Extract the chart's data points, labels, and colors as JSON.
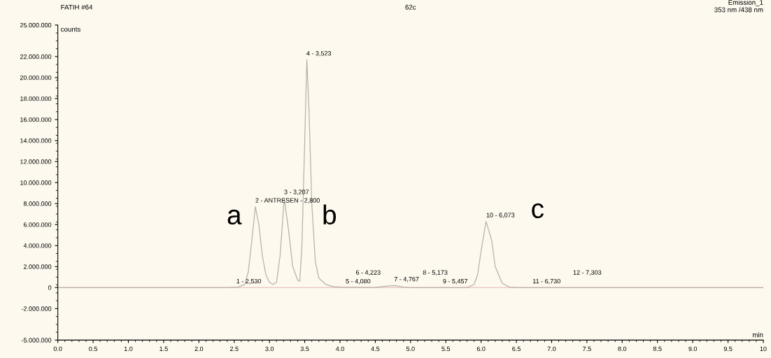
{
  "chart_data": {
    "type": "line",
    "title": "62c",
    "ylabel": "counts",
    "xlabel": "min",
    "xlim": [
      0,
      10
    ],
    "xticks": [
      {
        "value": 0,
        "label": "0.0"
      },
      {
        "value": 0.5,
        "label": "0.5"
      },
      {
        "value": 1,
        "label": "1.0"
      },
      {
        "value": 1.5,
        "label": "1.5"
      },
      {
        "value": 2,
        "label": "2.0"
      },
      {
        "value": 2.5,
        "label": "2.5"
      },
      {
        "value": 3,
        "label": "3.0"
      },
      {
        "value": 3.5,
        "label": "3.5"
      },
      {
        "value": 4,
        "label": "4.0"
      },
      {
        "value": 4.5,
        "label": "4.5"
      },
      {
        "value": 5,
        "label": "5.0"
      },
      {
        "value": 5.5,
        "label": "5.5"
      },
      {
        "value": 6,
        "label": "6.0"
      },
      {
        "value": 6.5,
        "label": "6.5"
      },
      {
        "value": 7,
        "label": "7.0"
      },
      {
        "value": 7.5,
        "label": "7.5"
      },
      {
        "value": 8,
        "label": "8.0"
      },
      {
        "value": 8.5,
        "label": "8.5"
      },
      {
        "value": 9,
        "label": "9.0"
      },
      {
        "value": 9.5,
        "label": "9.5"
      },
      {
        "value": 10,
        "label": "10"
      }
    ],
    "ylim": [
      -5000000,
      25000000
    ],
    "yticks": [
      {
        "value": -5000000,
        "label": "-5.000.000"
      },
      {
        "value": -2000000,
        "label": "-2.000.000"
      },
      0,
      {
        "value": 2000000,
        "label": "2.000.000"
      },
      {
        "value": 4000000,
        "label": "4.000.000"
      },
      {
        "value": 6000000,
        "label": "6.000.000"
      },
      {
        "value": 8000000,
        "label": "8.000.000"
      },
      {
        "value": 10000000,
        "label": "10.000.000"
      },
      {
        "value": 12000000,
        "label": "12.000.000"
      },
      {
        "value": 14000000,
        "label": "14.000.000"
      },
      {
        "value": 16000000,
        "label": "16.000.000"
      },
      {
        "value": 18000000,
        "label": "18.000.000"
      },
      {
        "value": 20000000,
        "label": "20.000.000"
      },
      {
        "value": 22000000,
        "label": "22.000.000"
      },
      {
        "value": 25000000,
        "label": "25.000.000"
      }
    ],
    "grid": false,
    "legend": false,
    "marker": "none",
    "line_style": "solid",
    "ref_lines": [
      {
        "axis": "y",
        "value": 0,
        "color": "#e8b4b4"
      }
    ],
    "series": [
      {
        "color": "#b8b0a8",
        "x": [
          0,
          2.4,
          2.55,
          2.65,
          2.7,
          2.75,
          2.8,
          2.85,
          2.9,
          2.95,
          3.0,
          3.05,
          3.1,
          3.15,
          3.21,
          3.27,
          3.33,
          3.4,
          3.43,
          3.46,
          3.5,
          3.53,
          3.56,
          3.6,
          3.65,
          3.7,
          3.8,
          3.9,
          4.0,
          4.5,
          4.6,
          4.77,
          4.9,
          5.0,
          5.8,
          5.9,
          5.95,
          6.0,
          6.07,
          6.15,
          6.2,
          6.3,
          6.4,
          6.5,
          10
        ],
        "values": [
          0,
          0,
          50000,
          300000,
          1500000,
          4500000,
          7700000,
          6000000,
          3000000,
          1200000,
          500000,
          300000,
          500000,
          3000000,
          8500000,
          5500000,
          2000000,
          700000,
          600000,
          4000000,
          14000000,
          21700000,
          17000000,
          8000000,
          2500000,
          900000,
          300000,
          100000,
          50000,
          20000,
          100000,
          200000,
          50000,
          0,
          0,
          300000,
          1200000,
          3500000,
          6300000,
          4500000,
          2000000,
          400000,
          50000,
          0,
          0
        ]
      }
    ],
    "annotations": [
      "FATIH #64",
      "Emission_1\n353 nm /438 nm",
      {
        "text": "1 - 2,530",
        "x": 2.53,
        "y": 0
      },
      {
        "text": "2 - ANTRESEN - 2,800",
        "x": 2.8,
        "y": 7700000
      },
      {
        "text": "3 - 3,207",
        "x": 3.207,
        "y": 8500000
      },
      {
        "text": "4 - 3,523",
        "x": 3.523,
        "y": 21700000
      },
      {
        "text": "5 - 4,080",
        "x": 4.08,
        "y": 0
      },
      {
        "text": "6 - 4,223",
        "x": 4.223,
        "y": 0
      },
      {
        "text": "7 - 4,767",
        "x": 4.767,
        "y": 200000
      },
      {
        "text": "8 - 5,173",
        "x": 5.173,
        "y": 0
      },
      {
        "text": "9 - 5,457",
        "x": 5.457,
        "y": 0
      },
      {
        "text": "10 - 6,073",
        "x": 6.073,
        "y": 6300000
      },
      {
        "text": "11 - 6,730",
        "x": 6.73,
        "y": 0
      },
      {
        "text": "12 - 7,303",
        "x": 7.303,
        "y": 0
      },
      "a",
      "b",
      "c"
    ]
  }
}
